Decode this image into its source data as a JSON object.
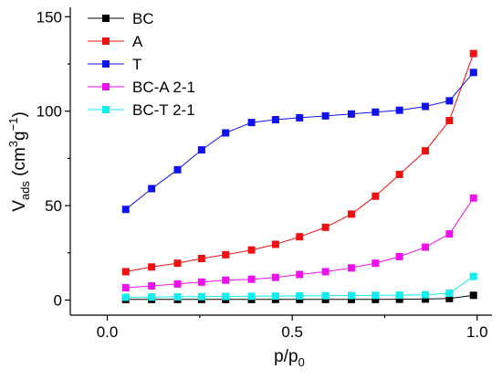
{
  "chart_data": {
    "type": "line",
    "xlabel": {
      "main": "p/p",
      "sub": "0"
    },
    "ylabel": {
      "v": "V",
      "sub": "ads",
      "open": " (cm",
      "sup1": "3",
      "g": "g",
      "sup2": "−1",
      "close": ")"
    },
    "xlim": [
      -0.1,
      1.04
    ],
    "ylim": [
      -8,
      155
    ],
    "x_ticks": [
      0.0,
      0.5,
      1.0
    ],
    "x_tick_labels": [
      "0.0",
      "0.5",
      "1.0"
    ],
    "y_ticks": [
      0,
      50,
      100,
      150
    ],
    "y_tick_labels": [
      "0",
      "50",
      "100",
      "150"
    ],
    "grid": false,
    "legend_position": "top-left",
    "x": [
      0.05,
      0.12,
      0.19,
      0.255,
      0.32,
      0.39,
      0.455,
      0.52,
      0.59,
      0.66,
      0.725,
      0.79,
      0.86,
      0.925,
      0.99
    ],
    "series": [
      {
        "name": "BC",
        "color": "#000000",
        "values": [
          0.3,
          0.3,
          0.3,
          0.3,
          0.3,
          0.3,
          0.3,
          0.3,
          0.3,
          0.3,
          0.3,
          0.4,
          0.5,
          0.8,
          2.5
        ]
      },
      {
        "name": "A",
        "color": "#ee1111",
        "values": [
          15,
          17.5,
          19.5,
          22,
          24,
          26.5,
          29.5,
          33.5,
          38.5,
          45.5,
          55,
          66.5,
          79,
          95,
          130.5
        ]
      },
      {
        "name": "T",
        "color": "#1111ee",
        "values": [
          48,
          59,
          69,
          79.5,
          88.5,
          94,
          95.5,
          96.5,
          97.5,
          98.5,
          99.5,
          100.5,
          102.5,
          105.5,
          120.5
        ]
      },
      {
        "name": "BC-A 2-1",
        "color": "#ee11ee",
        "values": [
          6.5,
          7.5,
          8.5,
          9.5,
          10.5,
          11,
          12,
          13.5,
          15,
          17,
          19.5,
          23,
          28,
          35,
          54
        ]
      },
      {
        "name": "BC-T 2-1",
        "color": "#11eeee",
        "values": [
          1.5,
          1.6,
          1.7,
          1.8,
          1.9,
          2.0,
          2.1,
          2.2,
          2.3,
          2.4,
          2.5,
          2.6,
          2.8,
          3.6,
          12.5
        ]
      }
    ]
  }
}
